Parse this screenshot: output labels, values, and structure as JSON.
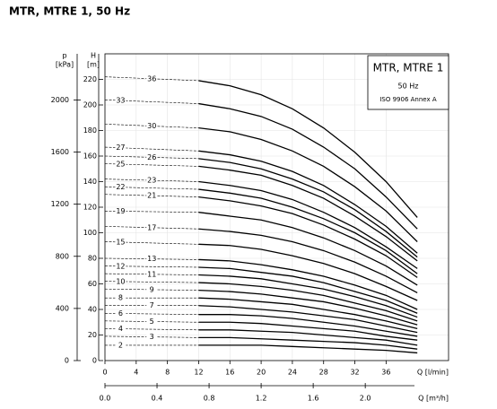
{
  "chart_data": {
    "type": "line",
    "title": "MTR, MTRE 1, 50 Hz",
    "annotations": [
      "MTR, MTRE 1",
      "50 Hz",
      "ISO 9906 Annex A"
    ],
    "x_label": "Q [l/min]",
    "x2_label": "Q [m³/h]",
    "y_label": "H",
    "y_unit": "[m]",
    "y2_label": "p",
    "y2_unit": "[kPa]",
    "x": [
      0,
      12,
      16,
      20,
      24,
      28,
      32,
      36,
      40
    ],
    "xlim": [
      0,
      44
    ],
    "xticks": [
      0,
      4,
      8,
      12,
      16,
      20,
      24,
      28,
      32,
      36
    ],
    "x2lim": [
      0,
      2.64
    ],
    "x2ticks": [
      {
        "value": 0,
        "label": "0.0"
      },
      0.4,
      0.8,
      1.2,
      1.6,
      {
        "value": 2,
        "label": "2.0"
      }
    ],
    "ylim": [
      0,
      240
    ],
    "yticks": [
      0,
      20,
      40,
      60,
      80,
      100,
      120,
      140,
      160,
      180,
      200,
      220
    ],
    "y2lim": [
      0,
      2354
    ],
    "y2ticks": [
      0,
      400,
      800,
      1200,
      1600,
      2000
    ],
    "grid": true,
    "color": "#000000",
    "series": [
      {
        "name": "36",
        "values": [
          222,
          219,
          215,
          208,
          197,
          182,
          163,
          140,
          112
        ]
      },
      {
        "name": "33",
        "values": [
          204,
          201,
          197,
          191,
          181,
          167,
          150,
          128,
          103
        ]
      },
      {
        "name": "30",
        "values": [
          185,
          182,
          179,
          173,
          164,
          152,
          136,
          117,
          93
        ]
      },
      {
        "name": "27",
        "values": [
          167,
          164,
          161,
          156,
          148,
          137,
          122,
          105,
          84
        ]
      },
      {
        "name": "26",
        "values": [
          160,
          158,
          155,
          150,
          142,
          132,
          118,
          101,
          81
        ]
      },
      {
        "name": "25",
        "values": [
          154,
          152,
          149,
          145,
          137,
          127,
          113,
          97,
          78
        ]
      },
      {
        "name": "23",
        "values": [
          142,
          140,
          137,
          133,
          126,
          116,
          104,
          89,
          72
        ]
      },
      {
        "name": "22",
        "values": [
          136,
          134,
          131,
          127,
          120,
          111,
          100,
          86,
          68
        ]
      },
      {
        "name": "21",
        "values": [
          130,
          128,
          125,
          121,
          115,
          106,
          95,
          82,
          65
        ]
      },
      {
        "name": "19",
        "values": [
          117,
          116,
          113,
          110,
          104,
          96,
          86,
          74,
          59
        ]
      },
      {
        "name": "17",
        "values": [
          105,
          103,
          101,
          98,
          93,
          86,
          77,
          66,
          53
        ]
      },
      {
        "name": "15",
        "values": [
          93,
          91,
          90,
          87,
          82,
          76,
          68,
          58,
          47
        ]
      },
      {
        "name": "13",
        "values": [
          80,
          79,
          78,
          75,
          71,
          66,
          59,
          51,
          40
        ]
      },
      {
        "name": "12",
        "values": [
          74,
          73,
          72,
          69,
          66,
          61,
          54,
          47,
          37
        ]
      },
      {
        "name": "11",
        "values": [
          68,
          67,
          66,
          64,
          60,
          56,
          50,
          43,
          34
        ]
      },
      {
        "name": "10",
        "values": [
          62,
          61,
          60,
          58,
          55,
          51,
          45,
          39,
          31
        ]
      },
      {
        "name": "9",
        "values": [
          56,
          55,
          54,
          52,
          49,
          46,
          41,
          35,
          28
        ]
      },
      {
        "name": "8",
        "values": [
          49,
          49,
          48,
          46,
          44,
          40,
          36,
          31,
          25
        ]
      },
      {
        "name": "7",
        "values": [
          43,
          43,
          42,
          40,
          38,
          35,
          32,
          27,
          22
        ]
      },
      {
        "name": "6",
        "values": [
          37,
          36,
          36,
          35,
          33,
          30,
          27,
          23,
          19
        ]
      },
      {
        "name": "5",
        "values": [
          31,
          30,
          30,
          29,
          27,
          25,
          23,
          19,
          16
        ]
      },
      {
        "name": "4",
        "values": [
          25,
          24,
          24,
          23,
          22,
          20,
          18,
          16,
          12
        ]
      },
      {
        "name": "3",
        "values": [
          19,
          18,
          18,
          17,
          16,
          15,
          14,
          12,
          9
        ]
      },
      {
        "name": "2",
        "values": [
          12,
          12,
          12,
          12,
          11,
          10,
          9,
          8,
          6
        ]
      }
    ]
  }
}
